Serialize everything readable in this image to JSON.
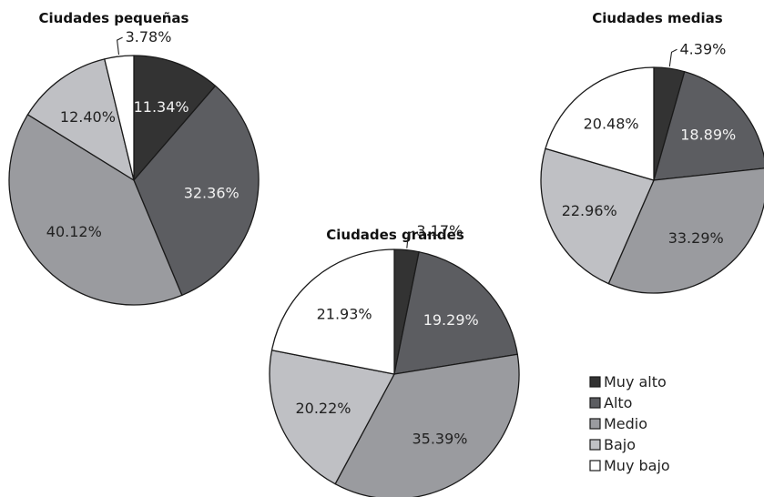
{
  "colors": {
    "muy_alto": "#333333",
    "alto": "#5c5d61",
    "medio": "#9a9b9f",
    "bajo": "#bfc0c4",
    "muy_bajo": "#ffffff",
    "outline": "#1a1a1a"
  },
  "legend": {
    "placement": "bottom-right",
    "items": [
      {
        "key": "muy_alto",
        "label": "Muy alto"
      },
      {
        "key": "alto",
        "label": "Alto"
      },
      {
        "key": "medio",
        "label": "Medio"
      },
      {
        "key": "bajo",
        "label": "Bajo"
      },
      {
        "key": "muy_bajo",
        "label": "Muy bajo"
      }
    ]
  },
  "chart_data": [
    {
      "type": "pie",
      "title": "Ciudades pequeñas",
      "categories": [
        "muy_alto",
        "alto",
        "medio",
        "bajo",
        "muy_bajo"
      ],
      "values": [
        11.34,
        32.36,
        40.12,
        12.4,
        3.78
      ],
      "labels": [
        "11.34%",
        "32.36%",
        "40.12%",
        "12.40%",
        "3.78%"
      ]
    },
    {
      "type": "pie",
      "title": "Ciudades grandes",
      "categories": [
        "muy_alto",
        "alto",
        "medio",
        "bajo",
        "muy_bajo"
      ],
      "values": [
        3.17,
        19.29,
        35.39,
        20.22,
        21.93
      ],
      "labels": [
        "3.17%",
        "19.29%",
        "35.39%",
        "20.22%",
        "21.93%"
      ]
    },
    {
      "type": "pie",
      "title": "Ciudades medias",
      "categories": [
        "muy_alto",
        "alto",
        "medio",
        "bajo",
        "muy_bajo"
      ],
      "values": [
        4.39,
        18.89,
        33.29,
        22.96,
        20.48
      ],
      "labels": [
        "4.39%",
        "18.89%",
        "33.29%",
        "22.96%",
        "20.48%"
      ]
    }
  ]
}
